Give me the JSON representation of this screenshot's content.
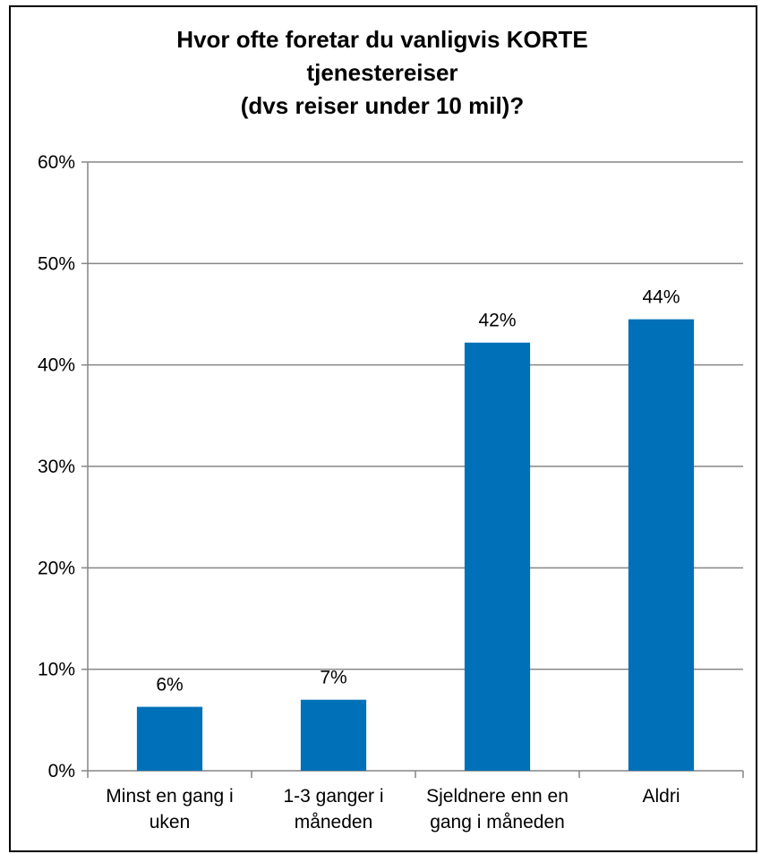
{
  "chart_data": {
    "type": "bar",
    "title_lines": [
      "Hvor ofte foretar du vanligvis KORTE",
      "tjenestereiser",
      "(dvs reiser under 10 mil)?"
    ],
    "categories": [
      [
        "Minst en gang i",
        "uken"
      ],
      [
        "1-3 ganger i",
        "måneden"
      ],
      [
        "Sjeldnere enn en",
        "gang i måneden"
      ],
      [
        "Aldri"
      ]
    ],
    "values": [
      6.3,
      7.0,
      42.2,
      44.5
    ],
    "data_labels": [
      "6%",
      "7%",
      "42%",
      "44%"
    ],
    "ylim": [
      0,
      60
    ],
    "yticks": [
      0,
      10,
      20,
      30,
      40,
      50,
      60
    ],
    "ytick_labels": [
      "0%",
      "10%",
      "20%",
      "30%",
      "40%",
      "50%",
      "60%"
    ],
    "grid": true,
    "legend": "none",
    "bar_color": "#0070b8"
  }
}
